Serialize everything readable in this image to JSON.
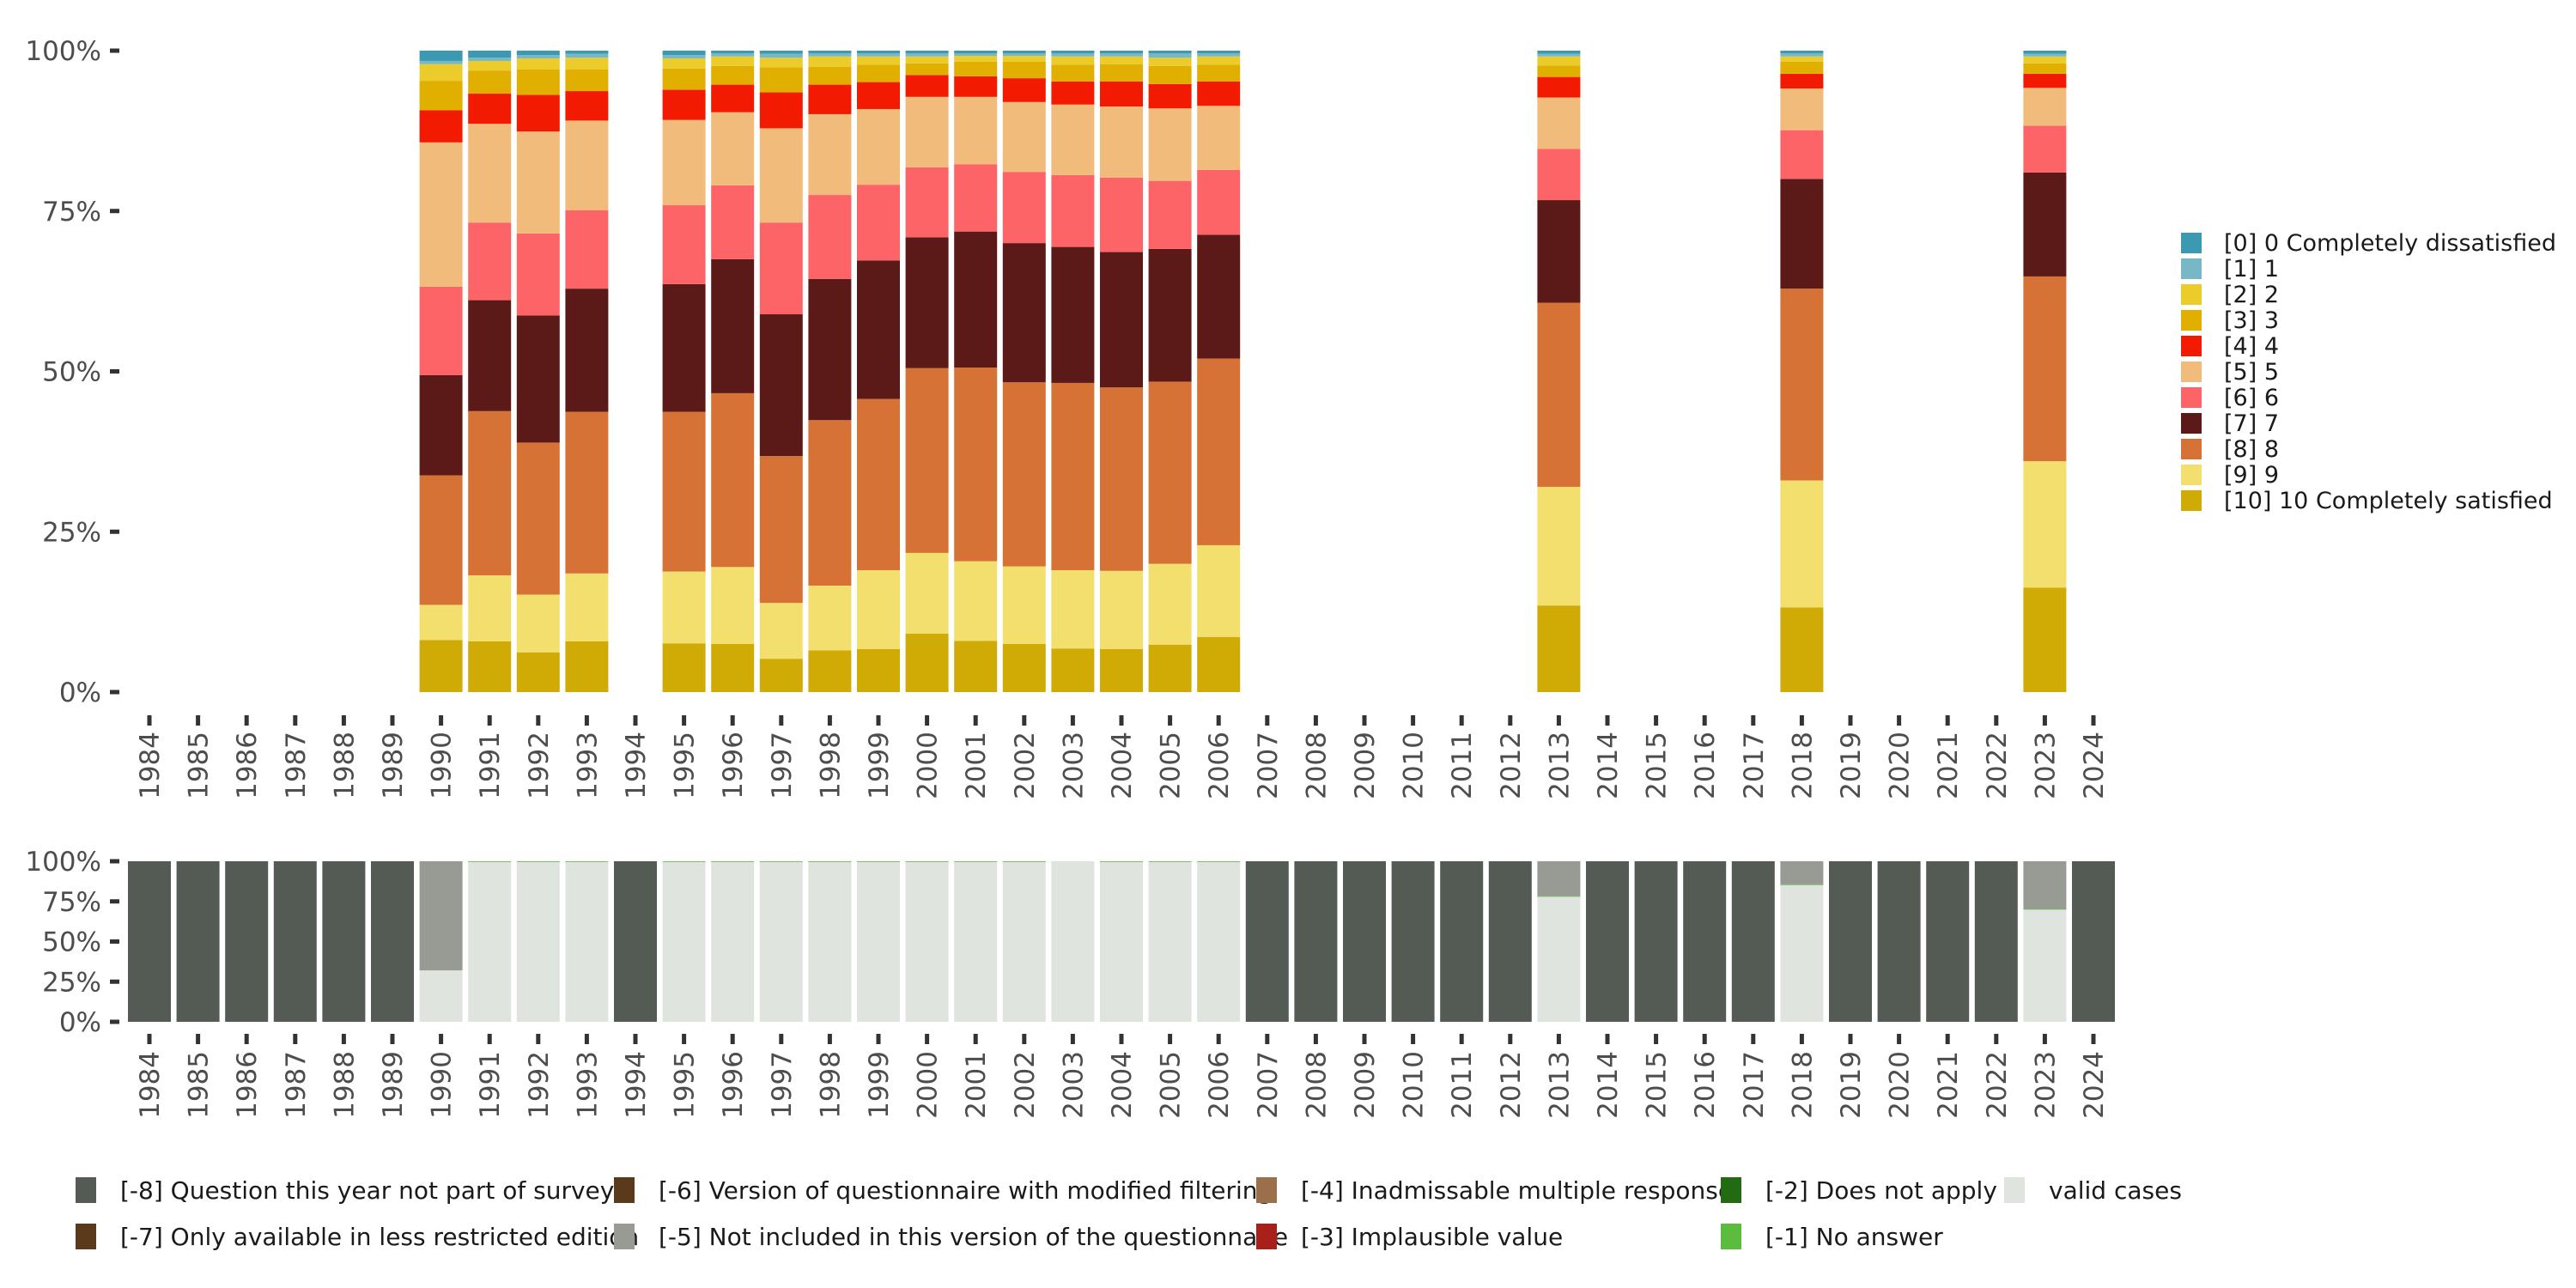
{
  "chart_data": [
    {
      "type": "bar",
      "stacked": true,
      "normalized": true,
      "panel": "top",
      "title": "",
      "xlabel": "",
      "ylabel": "",
      "ylim": [
        0,
        100
      ],
      "yticks": [
        "0%",
        "25%",
        "50%",
        "75%",
        "100%"
      ],
      "categories": [
        "1984",
        "1985",
        "1986",
        "1987",
        "1988",
        "1989",
        "1990",
        "1991",
        "1992",
        "1993",
        "1994",
        "1995",
        "1996",
        "1997",
        "1998",
        "1999",
        "2000",
        "2001",
        "2002",
        "2003",
        "2004",
        "2005",
        "2006",
        "2007",
        "2008",
        "2009",
        "2010",
        "2011",
        "2012",
        "2013",
        "2014",
        "2015",
        "2016",
        "2017",
        "2018",
        "2019",
        "2020",
        "2021",
        "2022",
        "2023",
        "2024"
      ],
      "legend_position": "right",
      "series": [
        {
          "name": "[10] 10 Completely satisfied",
          "color": "#D0AB06",
          "values": [
            null,
            null,
            null,
            null,
            null,
            null,
            8.1,
            7.9,
            6.2,
            7.9,
            null,
            7.6,
            7.5,
            5.2,
            6.5,
            6.7,
            9.1,
            8.0,
            7.5,
            6.8,
            6.7,
            7.4,
            8.6,
            null,
            null,
            null,
            null,
            null,
            null,
            13.5,
            null,
            null,
            null,
            null,
            13.2,
            null,
            null,
            null,
            null,
            16.3,
            null
          ]
        },
        {
          "name": "[9] 9",
          "color": "#F2DF6E",
          "values": [
            null,
            null,
            null,
            null,
            null,
            null,
            5.5,
            10.3,
            9.0,
            10.6,
            null,
            11.2,
            12.0,
            8.7,
            10.1,
            12.3,
            12.6,
            12.4,
            12.1,
            12.2,
            12.2,
            12.6,
            14.3,
            null,
            null,
            null,
            null,
            null,
            null,
            18.5,
            null,
            null,
            null,
            null,
            19.8,
            null,
            null,
            null,
            null,
            19.7,
            null
          ]
        },
        {
          "name": "[8] 8",
          "color": "#D67236",
          "values": [
            null,
            null,
            null,
            null,
            null,
            null,
            20.2,
            25.6,
            23.7,
            25.2,
            null,
            24.9,
            27.1,
            22.9,
            25.8,
            26.7,
            28.8,
            30.2,
            28.7,
            29.2,
            28.6,
            28.4,
            29.1,
            null,
            null,
            null,
            null,
            null,
            null,
            28.7,
            null,
            null,
            null,
            null,
            29.9,
            null,
            null,
            null,
            null,
            28.8,
            null
          ]
        },
        {
          "name": "[7] 7",
          "color": "#5B1A18",
          "values": [
            null,
            null,
            null,
            null,
            null,
            null,
            15.6,
            17.3,
            19.8,
            19.2,
            null,
            19.9,
            20.9,
            22.1,
            22.0,
            21.6,
            20.4,
            21.2,
            21.7,
            21.2,
            21.1,
            20.7,
            19.3,
            null,
            null,
            null,
            null,
            null,
            null,
            16.0,
            null,
            null,
            null,
            null,
            17.1,
            null,
            null,
            null,
            null,
            16.2,
            null
          ]
        },
        {
          "name": "[6] 6",
          "color": "#FD6467",
          "values": [
            null,
            null,
            null,
            null,
            null,
            null,
            13.8,
            12.1,
            12.8,
            12.2,
            null,
            12.3,
            11.5,
            14.3,
            13.1,
            11.8,
            10.9,
            10.5,
            11.1,
            11.2,
            11.6,
            10.6,
            10.1,
            null,
            null,
            null,
            null,
            null,
            null,
            8.0,
            null,
            null,
            null,
            null,
            7.6,
            null,
            null,
            null,
            null,
            7.3,
            null
          ]
        },
        {
          "name": "[5] 5",
          "color": "#F1BB7B",
          "values": [
            null,
            null,
            null,
            null,
            null,
            null,
            22.5,
            15.4,
            15.9,
            14.0,
            null,
            13.3,
            11.4,
            14.7,
            12.6,
            11.8,
            11.0,
            10.5,
            10.9,
            11.0,
            11.1,
            11.3,
            10.0,
            null,
            null,
            null,
            null,
            null,
            null,
            8.0,
            null,
            null,
            null,
            null,
            6.5,
            null,
            null,
            null,
            null,
            5.9,
            null
          ]
        },
        {
          "name": "[4] 4",
          "color": "#F21A00",
          "values": [
            null,
            null,
            null,
            null,
            null,
            null,
            5.0,
            4.7,
            5.7,
            4.6,
            null,
            4.7,
            4.3,
            5.6,
            4.6,
            4.2,
            3.4,
            3.2,
            3.7,
            3.6,
            3.9,
            3.8,
            3.8,
            null,
            null,
            null,
            null,
            null,
            null,
            3.2,
            null,
            null,
            null,
            null,
            2.3,
            null,
            null,
            null,
            null,
            2.2,
            null
          ]
        },
        {
          "name": "[3] 3",
          "color": "#E1AF00",
          "values": [
            null,
            null,
            null,
            null,
            null,
            null,
            4.6,
            3.6,
            4.0,
            3.4,
            null,
            3.3,
            2.9,
            3.9,
            2.8,
            2.7,
            1.8,
            2.3,
            2.6,
            2.6,
            2.7,
            2.8,
            2.6,
            null,
            null,
            null,
            null,
            null,
            null,
            1.8,
            null,
            null,
            null,
            null,
            1.9,
            null,
            null,
            null,
            null,
            1.6,
            null
          ]
        },
        {
          "name": "[2] 2",
          "color": "#EBCC2A",
          "values": [
            null,
            null,
            null,
            null,
            null,
            null,
            2.6,
            1.5,
            1.7,
            1.8,
            null,
            1.6,
            1.5,
            1.5,
            1.6,
            1.3,
            1.1,
            0.9,
            0.9,
            1.3,
            1.2,
            1.3,
            1.3,
            null,
            null,
            null,
            null,
            null,
            null,
            1.4,
            null,
            null,
            null,
            null,
            0.8,
            null,
            null,
            null,
            null,
            1.1,
            null
          ]
        },
        {
          "name": "[1] 1",
          "color": "#78B7C5",
          "values": [
            null,
            null,
            null,
            null,
            null,
            null,
            0.5,
            0.5,
            0.5,
            0.6,
            null,
            0.5,
            0.5,
            0.6,
            0.5,
            0.5,
            0.5,
            0.4,
            0.4,
            0.5,
            0.5,
            0.7,
            0.5,
            null,
            null,
            null,
            null,
            null,
            null,
            0.4,
            null,
            null,
            null,
            null,
            0.5,
            null,
            null,
            null,
            null,
            0.4,
            null
          ]
        },
        {
          "name": "[0] 0 Completely dissatisfied",
          "color": "#3B9AB2",
          "values": [
            null,
            null,
            null,
            null,
            null,
            null,
            1.6,
            1.1,
            0.7,
            0.5,
            null,
            0.7,
            0.4,
            0.5,
            0.4,
            0.4,
            0.4,
            0.4,
            0.4,
            0.4,
            0.4,
            0.4,
            0.4,
            null,
            null,
            null,
            null,
            null,
            null,
            0.5,
            null,
            null,
            null,
            null,
            0.4,
            null,
            null,
            null,
            null,
            0.5,
            null
          ]
        }
      ]
    },
    {
      "type": "bar",
      "stacked": true,
      "normalized": true,
      "panel": "bottom",
      "title": "",
      "xlabel": "",
      "ylabel": "",
      "ylim": [
        0,
        100
      ],
      "yticks": [
        "0%",
        "25%",
        "50%",
        "75%",
        "100%"
      ],
      "categories": [
        "1984",
        "1985",
        "1986",
        "1987",
        "1988",
        "1989",
        "1990",
        "1991",
        "1992",
        "1993",
        "1994",
        "1995",
        "1996",
        "1997",
        "1998",
        "1999",
        "2000",
        "2001",
        "2002",
        "2003",
        "2004",
        "2005",
        "2006",
        "2007",
        "2008",
        "2009",
        "2010",
        "2011",
        "2012",
        "2013",
        "2014",
        "2015",
        "2016",
        "2017",
        "2018",
        "2019",
        "2020",
        "2021",
        "2022",
        "2023",
        "2024"
      ],
      "legend_position": "bottom",
      "series": [
        {
          "name": "valid cases",
          "color": "#E0E4DF",
          "values": [
            0,
            0,
            0,
            0,
            0,
            0,
            32.0,
            99.7,
            99.7,
            99.7,
            0,
            99.7,
            99.7,
            99.7,
            99.7,
            99.7,
            99.7,
            99.7,
            99.7,
            100,
            99.7,
            99.7,
            99.7,
            0,
            0,
            0,
            0,
            0,
            0,
            77.9,
            0,
            0,
            0,
            0,
            85.2,
            0,
            0,
            0,
            0,
            69.9,
            0
          ]
        },
        {
          "name": "[-1] No answer",
          "color": "#5BBC3D",
          "values": [
            0,
            0,
            0,
            0,
            0,
            0,
            0,
            0.3,
            0.3,
            0.3,
            0,
            0.3,
            0.3,
            0.3,
            0.3,
            0.3,
            0.3,
            0.3,
            0.3,
            0,
            0.3,
            0.3,
            0.3,
            0,
            0,
            0,
            0,
            0,
            0,
            0.4,
            0,
            0,
            0,
            0,
            0.4,
            0,
            0,
            0,
            0,
            0.4,
            0
          ]
        },
        {
          "name": "[-5] Not included in this version of the questionnaire",
          "color": "#979B94",
          "values": [
            0,
            0,
            0,
            0,
            0,
            0,
            68.0,
            0,
            0,
            0,
            0,
            0,
            0,
            0,
            0,
            0,
            0,
            0,
            0,
            0,
            0,
            0,
            0,
            0,
            0,
            0,
            0,
            0,
            0,
            21.7,
            0,
            0,
            0,
            0,
            14.4,
            0,
            0,
            0,
            0,
            29.7,
            0
          ]
        },
        {
          "name": "[-8] Question this year not part of survey",
          "color": "#545B54",
          "values": [
            100,
            100,
            100,
            100,
            100,
            100,
            0,
            0,
            0,
            0,
            100,
            0,
            0,
            0,
            0,
            0,
            0,
            0,
            0,
            0,
            0,
            0,
            0,
            100,
            100,
            100,
            100,
            100,
            100,
            0,
            100,
            100,
            100,
            100,
            0,
            100,
            100,
            100,
            100,
            0,
            100
          ]
        }
      ]
    }
  ],
  "legend_right": [
    {
      "label": "[0] 0 Completely dissatisfied",
      "color": "#3B9AB2"
    },
    {
      "label": "[1] 1",
      "color": "#78B7C5"
    },
    {
      "label": "[2] 2",
      "color": "#EBCC2A"
    },
    {
      "label": "[3] 3",
      "color": "#E1AF00"
    },
    {
      "label": "[4] 4",
      "color": "#F21A00"
    },
    {
      "label": "[5] 5",
      "color": "#F1BB7B"
    },
    {
      "label": "[6] 6",
      "color": "#FD6467"
    },
    {
      "label": "[7] 7",
      "color": "#5B1A18"
    },
    {
      "label": "[8] 8",
      "color": "#D67236"
    },
    {
      "label": "[9] 9",
      "color": "#F2DF6E"
    },
    {
      "label": "[10] 10 Completely satisfied",
      "color": "#D0AB06"
    }
  ],
  "legend_bottom": [
    {
      "label": "[-8] Question this year not part of survey",
      "color": "#545B54"
    },
    {
      "label": "[-7] Only available in less restricted edition",
      "color": "#5A3A1A"
    },
    {
      "label": "[-6] Version of questionnaire with modified filtering",
      "color": "#5A3A1A"
    },
    {
      "label": "[-5] Not included in this version of the questionnaire",
      "color": "#979B94"
    },
    {
      "label": "[-4] Inadmissable multiple response",
      "color": "#9A6F4A"
    },
    {
      "label": "[-3] Implausible value",
      "color": "#A8201A"
    },
    {
      "label": "[-2] Does not apply",
      "color": "#236B12"
    },
    {
      "label": "[-1] No answer",
      "color": "#5BBC3D"
    },
    {
      "label": "valid cases",
      "color": "#E0E4DF"
    }
  ]
}
